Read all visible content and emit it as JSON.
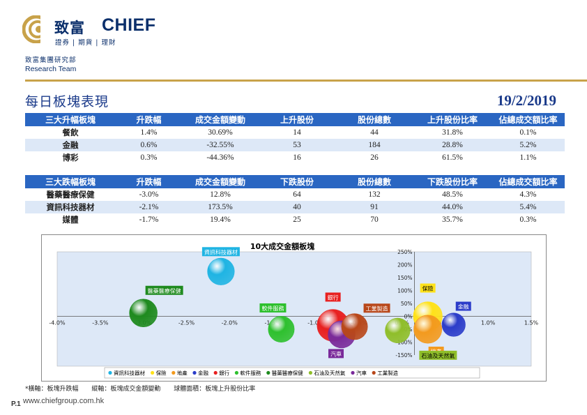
{
  "brand": {
    "name_zh": "致富",
    "name_en": "CHIEF",
    "tagline": "證券 | 期貨 | 理財",
    "dept": "致富集團研究部",
    "team": "Research Team",
    "colors": {
      "navy": "#0b2f6b",
      "gold": "#c8a24a",
      "table_header": "#2a66c2"
    }
  },
  "page": {
    "title": "每日板塊表現",
    "date": "19/2/2019"
  },
  "table_up": {
    "columns": [
      "三大升幅板塊",
      "升跌幅",
      "成交金額變動",
      "上升股份",
      "股份總數",
      "上升股份比率",
      "佔總成交額比率"
    ],
    "rows": [
      [
        "餐飲",
        "1.4%",
        "30.69%",
        "14",
        "44",
        "31.8%",
        "0.1%"
      ],
      [
        "金融",
        "0.6%",
        "-32.55%",
        "53",
        "184",
        "28.8%",
        "5.2%"
      ],
      [
        "博彩",
        "0.3%",
        "-44.36%",
        "16",
        "26",
        "61.5%",
        "1.1%"
      ]
    ]
  },
  "table_down": {
    "columns": [
      "三大跌幅板塊",
      "升跌幅",
      "成交金額變動",
      "下跌股份",
      "股份總數",
      "下跌股份比率",
      "佔總成交額比率"
    ],
    "rows": [
      [
        "醫藥醫療保健",
        "-3.0%",
        "12.8%",
        "64",
        "132",
        "48.5%",
        "4.3%"
      ],
      [
        "資訊科技器材",
        "-2.1%",
        "173.5%",
        "40",
        "91",
        "44.0%",
        "5.4%"
      ],
      [
        "媒體",
        "-1.7%",
        "19.4%",
        "25",
        "70",
        "35.7%",
        "0.3%"
      ]
    ]
  },
  "chart_data": {
    "type": "bubble",
    "title": "10大成交金額板塊",
    "xlim": [
      -4.0,
      1.5
    ],
    "ylim": [
      -150,
      250
    ],
    "x_ticks": [
      "-4.0%",
      "-3.5%",
      "-3.0%",
      "-2.5%",
      "-2.0%",
      "-1.5%",
      "-1.0%",
      "-0.5%",
      "0.0%",
      "0.5%",
      "1.0%",
      "1.5%"
    ],
    "y_ticks": [
      "-150%",
      "-100%",
      "-50%",
      "0%",
      "50%",
      "100%",
      "150%",
      "200%",
      "250%"
    ],
    "legend_position": "bottom",
    "series": [
      {
        "name": "資訊科技器材",
        "x": -2.1,
        "y": 173.5,
        "size": 44.0,
        "color": "#1fb4e3",
        "label": "資訊科技器材"
      },
      {
        "name": "保險",
        "x": 0.3,
        "y": 0,
        "size": 55,
        "color": "#ffe21a",
        "label": "保險"
      },
      {
        "name": "地產",
        "x": 0.3,
        "y": -50,
        "size": 50,
        "color": "#f39a1e",
        "label": "地產"
      },
      {
        "name": "金融",
        "x": 0.6,
        "y": -32.55,
        "size": 28.8,
        "color": "#2b3cc9",
        "label": "金融"
      },
      {
        "name": "銀行",
        "x": -0.8,
        "y": -35,
        "size": 70,
        "color": "#e82020",
        "label": "銀行"
      },
      {
        "name": "軟件服務",
        "x": -1.4,
        "y": -50,
        "size": 40,
        "color": "#2ec02e",
        "label": "軟件服務"
      },
      {
        "name": "醫藥醫療保健",
        "x": -3.0,
        "y": 12.8,
        "size": 48.5,
        "color": "#1e8a1e",
        "label": "醫藥醫療保健"
      },
      {
        "name": "石油及天然氣",
        "x": -0.05,
        "y": -55,
        "size": 35,
        "color": "#8fbe2a",
        "label": "石油及天然氣"
      },
      {
        "name": "汽車",
        "x": -0.7,
        "y": -70,
        "size": 45,
        "color": "#7a2a9a",
        "label": "汽車"
      },
      {
        "name": "工業製造",
        "x": -0.55,
        "y": -40,
        "size": 40,
        "color": "#b8471a",
        "label": "工業製造"
      }
    ]
  },
  "footer": {
    "notes": [
      "*橫軸：板塊升跌幅",
      "縱軸：板塊成交金額變動",
      "球體面積：板塊上升股份比率"
    ],
    "page": "P.1",
    "url": "www.chiefgroup.com.hk"
  }
}
